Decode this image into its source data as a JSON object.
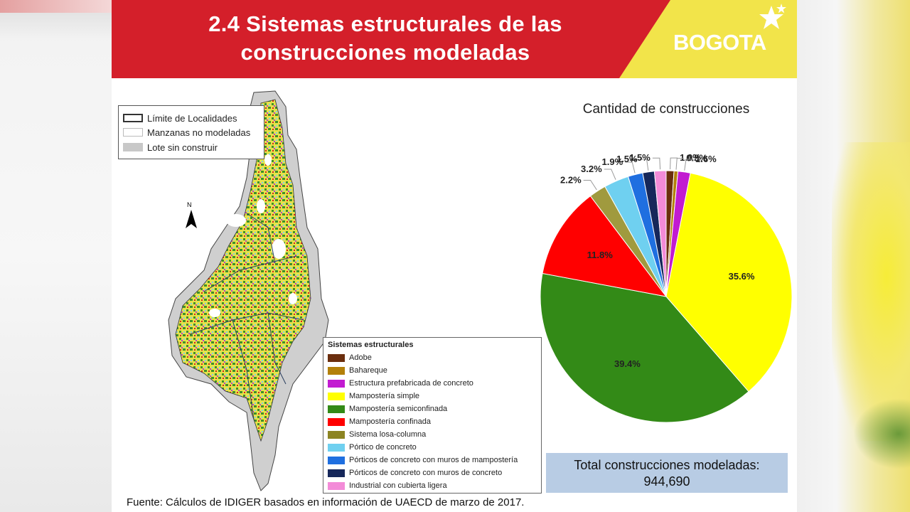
{
  "header": {
    "title_line1": "2.4 Sistemas estructurales de las",
    "title_line2": "construcciones modeladas",
    "logo_text": "BOGOTA",
    "brand_red": "#d41f2a",
    "brand_yellow": "#f2e44a"
  },
  "map": {
    "legend_top": [
      {
        "label": "Límite de Localidades",
        "icon": "outline-box"
      },
      {
        "label": "Manzanas no modeladas",
        "icon": "white-box"
      },
      {
        "label": "Lote sin construir",
        "icon": "gray-box"
      }
    ],
    "north_label": "N",
    "legend_title": "Sistemas estructurales",
    "legend_items": [
      {
        "label": "Adobe",
        "color": "#6b2e0e"
      },
      {
        "label": "Bahareque",
        "color": "#b3800a"
      },
      {
        "label": "Estructura prefabricada de concreto",
        "color": "#c21bd1"
      },
      {
        "label": "Mampostería simple",
        "color": "#ffff00"
      },
      {
        "label": "Mampostería semiconfinada",
        "color": "#338a17"
      },
      {
        "label": "Mampostería confinada",
        "color": "#ff0000"
      },
      {
        "label": "Sistema losa-columna",
        "color": "#8c8422"
      },
      {
        "label": "Pórtico de concreto",
        "color": "#6fd0f0"
      },
      {
        "label": "Pórticos de concreto con muros de mampostería",
        "color": "#1f6fe0"
      },
      {
        "label": "Pórticos de concreto con muros de concreto",
        "color": "#16275a"
      },
      {
        "label": "Industrial con cubierta ligera",
        "color": "#f38bd8"
      }
    ]
  },
  "source_text": "Fuente: Cálculos de IDIGER basados en información de UAECD de marzo de 2017.",
  "chart_data": {
    "type": "pie",
    "title": "Cantidad de construcciones",
    "slices": [
      {
        "category": "Adobe",
        "value": 1.0,
        "label": "1.0%",
        "color": "#6b2e0e"
      },
      {
        "category": "Bahareque",
        "value": 0.5,
        "label": "0.5%",
        "color": "#b3800a"
      },
      {
        "category": "Estructura prefabricada de concreto",
        "value": 1.6,
        "label": "1.6%",
        "color": "#c21bd1"
      },
      {
        "category": "Mampostería simple",
        "value": 35.6,
        "label": "35.6%",
        "color": "#ffff00"
      },
      {
        "category": "Mampostería semiconfinada",
        "value": 39.4,
        "label": "39.4%",
        "color": "#338a17"
      },
      {
        "category": "Mampostería confinada",
        "value": 11.8,
        "label": "11.8%",
        "color": "#ff0000"
      },
      {
        "category": "Sistema losa-columna",
        "value": 2.2,
        "label": "2.2%",
        "color": "#a09a3e"
      },
      {
        "category": "Pórtico de concreto",
        "value": 3.2,
        "label": "3.2%",
        "color": "#6fd0f0"
      },
      {
        "category": "Pórticos de concreto con muros de mampostería",
        "value": 1.9,
        "label": "1.9%",
        "color": "#1f6fe0"
      },
      {
        "category": "Pórticos de concreto con muros de concreto",
        "value": 1.5,
        "label": "1.5%",
        "color": "#16275a"
      },
      {
        "category": "Industrial con cubierta ligera",
        "value": 1.5,
        "label": "1.5%",
        "color": "#f38bd8"
      }
    ]
  },
  "total": {
    "label": "Total construcciones modeladas:",
    "value": "944,690"
  }
}
